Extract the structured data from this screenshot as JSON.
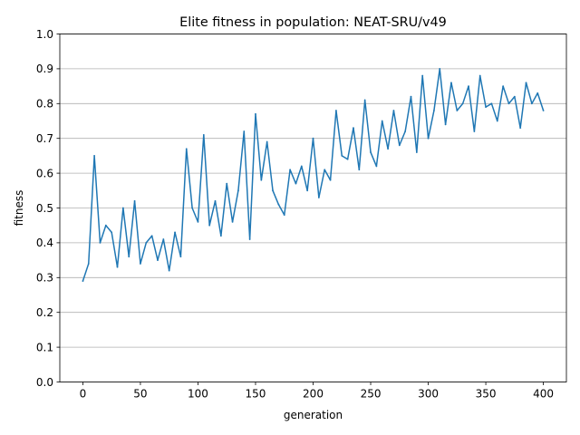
{
  "chart_data": {
    "type": "line",
    "title": "Elite fitness in population: NEAT-SRU/v49",
    "xlabel": "generation",
    "ylabel": "fitness",
    "xlim": [
      -20,
      420
    ],
    "ylim": [
      0.0,
      1.0
    ],
    "x_ticks": [
      0,
      50,
      100,
      150,
      200,
      250,
      300,
      350,
      400
    ],
    "y_ticks": [
      0.0,
      0.1,
      0.2,
      0.3,
      0.4,
      0.5,
      0.6,
      0.7,
      0.8,
      0.9,
      1.0
    ],
    "x_tick_labels": [
      "0",
      "50",
      "100",
      "150",
      "200",
      "250",
      "300",
      "350",
      "400"
    ],
    "y_tick_labels": [
      "0.0",
      "0.1",
      "0.2",
      "0.3",
      "0.4",
      "0.5",
      "0.6",
      "0.7",
      "0.8",
      "0.9",
      "1.0"
    ],
    "grid": "horizontal",
    "line_color": "#1f77b4",
    "series": [
      {
        "x": [
          0,
          5,
          10,
          15,
          20,
          25,
          30,
          35,
          40,
          45,
          50,
          55,
          60,
          65,
          70,
          75,
          80,
          85,
          90,
          95,
          100,
          105,
          110,
          115,
          120,
          125,
          130,
          135,
          140,
          145,
          150,
          155,
          160,
          165,
          170,
          175,
          180,
          185,
          190,
          195,
          200,
          205,
          210,
          215,
          220,
          225,
          230,
          235,
          240,
          245,
          250,
          255,
          260,
          265,
          270,
          275,
          280,
          285,
          290,
          295,
          300,
          305,
          310,
          315,
          320,
          325,
          330,
          335,
          340,
          345,
          350,
          355,
          360,
          365,
          370,
          375,
          380,
          385,
          390,
          395,
          400
        ],
        "values": [
          0.29,
          0.34,
          0.65,
          0.4,
          0.45,
          0.43,
          0.33,
          0.5,
          0.36,
          0.52,
          0.34,
          0.4,
          0.42,
          0.35,
          0.41,
          0.32,
          0.43,
          0.36,
          0.67,
          0.5,
          0.46,
          0.71,
          0.45,
          0.52,
          0.42,
          0.57,
          0.46,
          0.55,
          0.72,
          0.41,
          0.77,
          0.58,
          0.69,
          0.55,
          0.51,
          0.48,
          0.61,
          0.57,
          0.62,
          0.55,
          0.7,
          0.53,
          0.61,
          0.58,
          0.78,
          0.65,
          0.64,
          0.73,
          0.61,
          0.81,
          0.66,
          0.62,
          0.75,
          0.67,
          0.78,
          0.68,
          0.72,
          0.82,
          0.66,
          0.88,
          0.7,
          0.78,
          0.9,
          0.74,
          0.86,
          0.78,
          0.8,
          0.85,
          0.72,
          0.88,
          0.79,
          0.8,
          0.75,
          0.85,
          0.8,
          0.82,
          0.73,
          0.86,
          0.8,
          0.83,
          0.78
        ]
      }
    ]
  }
}
